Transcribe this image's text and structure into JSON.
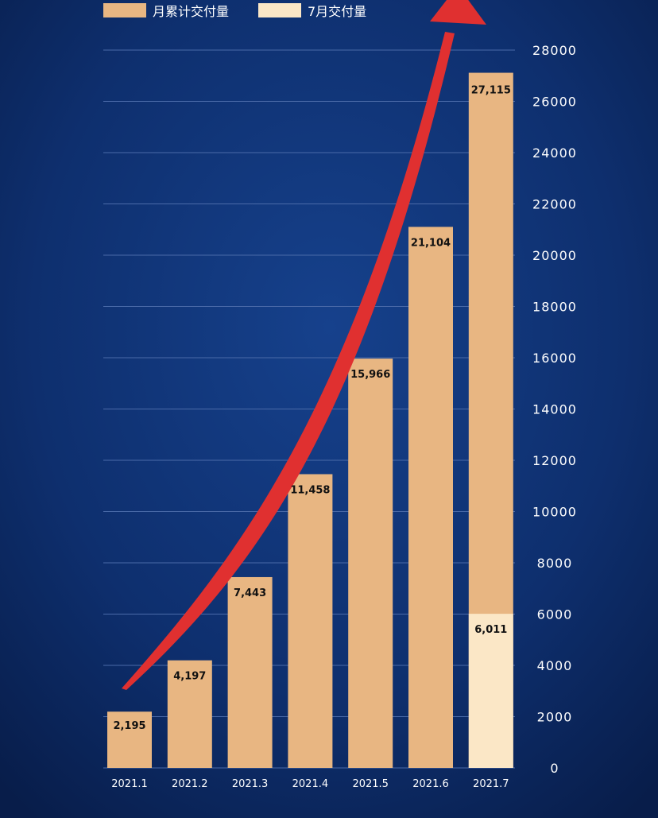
{
  "legend": [
    {
      "label": "月累计交付量",
      "color": "#e8b682"
    },
    {
      "label": "7月交付量",
      "color": "#fbe7c6"
    }
  ],
  "colors": {
    "background": "#0c2a63",
    "gridline": "#4a6aa8",
    "arrow": "#e03030",
    "cumulative_bar": "#e8b682",
    "monthly_bar": "#fbe7c6"
  },
  "chart_data": {
    "type": "bar",
    "categories": [
      "2021.1",
      "2021.2",
      "2021.3",
      "2021.4",
      "2021.5",
      "2021.6",
      "2021.7"
    ],
    "series": [
      {
        "name": "月累计交付量",
        "values": [
          2195,
          4197,
          7443,
          11458,
          15966,
          21104,
          27115
        ]
      },
      {
        "name": "7月交付量",
        "values": [
          null,
          null,
          null,
          null,
          null,
          null,
          6011
        ]
      }
    ],
    "data_labels": [
      "2,195",
      "4,197",
      "7,443",
      "11,458",
      "15,966",
      "21,104",
      "27,115"
    ],
    "monthly_label": "6,011",
    "ylim": [
      0,
      28000
    ],
    "yticks": [
      0,
      2000,
      4000,
      6000,
      8000,
      10000,
      12000,
      14000,
      16000,
      18000,
      20000,
      22000,
      24000,
      26000,
      28000
    ],
    "y_axis_side": "right",
    "grid": true,
    "legend_position": "top-left",
    "annotation": "red upward trend arrow"
  }
}
